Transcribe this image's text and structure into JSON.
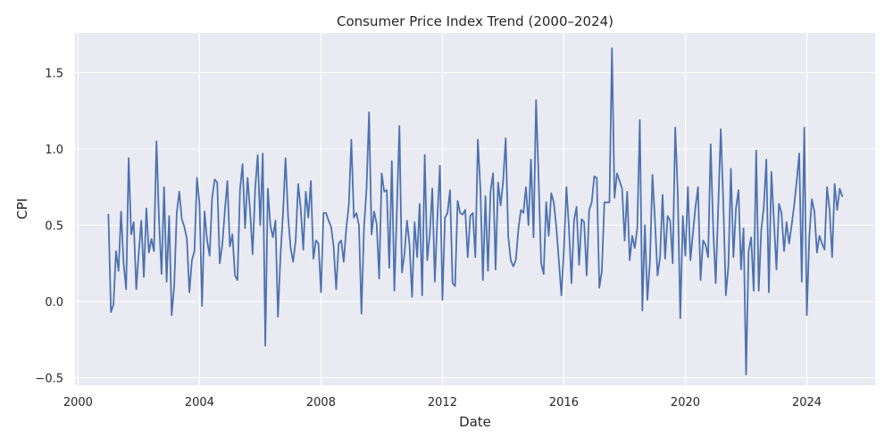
{
  "chart_data": {
    "type": "line",
    "title": "Consumer Price Index Trend (2000–2024)",
    "xlabel": "Date",
    "ylabel": "CPI",
    "x_ticks": [
      "2000",
      "2004",
      "2008",
      "2012",
      "2016",
      "2020",
      "2024"
    ],
    "y_ticks": [
      "−0.5",
      "0.0",
      "0.5",
      "1.0",
      "1.5"
    ],
    "xlim": [
      1999.9,
      2026.25
    ],
    "ylim": [
      -0.55,
      1.76
    ],
    "grid": true,
    "background": "#eaeaf2",
    "line_color": "#4c72b0",
    "series": [
      {
        "x_start": "2001-01",
        "frequency": "monthly",
        "values": [
          0.57,
          -0.07,
          -0.02,
          0.33,
          0.2,
          0.59,
          0.25,
          0.08,
          0.94,
          0.44,
          0.52,
          0.08,
          0.32,
          0.53,
          0.16,
          0.61,
          0.32,
          0.41,
          0.33,
          1.05,
          0.53,
          0.18,
          0.75,
          0.13,
          0.56,
          -0.09,
          0.1,
          0.58,
          0.72,
          0.54,
          0.49,
          0.41,
          0.06,
          0.27,
          0.33,
          0.81,
          0.64,
          -0.03,
          0.59,
          0.4,
          0.3,
          0.68,
          0.8,
          0.78,
          0.25,
          0.37,
          0.59,
          0.79,
          0.36,
          0.44,
          0.17,
          0.14,
          0.73,
          0.9,
          0.48,
          0.81,
          0.59,
          0.31,
          0.74,
          0.96,
          0.5,
          0.97,
          -0.29,
          0.74,
          0.5,
          0.42,
          0.53,
          -0.1,
          0.3,
          0.58,
          0.94,
          0.56,
          0.35,
          0.26,
          0.4,
          0.77,
          0.61,
          0.34,
          0.72,
          0.55,
          0.79,
          0.28,
          0.4,
          0.38,
          0.06,
          0.58,
          0.58,
          0.53,
          0.49,
          0.36,
          0.08,
          0.38,
          0.4,
          0.26,
          0.48,
          0.63,
          1.06,
          0.55,
          0.58,
          0.5,
          -0.08,
          0.48,
          0.74,
          1.24,
          0.44,
          0.59,
          0.51,
          0.15,
          0.84,
          0.72,
          0.73,
          0.22,
          0.92,
          0.07,
          0.6,
          1.15,
          0.19,
          0.31,
          0.53,
          0.37,
          0.03,
          0.52,
          0.29,
          0.64,
          0.04,
          0.96,
          0.27,
          0.44,
          0.74,
          0.13,
          0.55,
          0.89,
          0.01,
          0.55,
          0.58,
          0.73,
          0.12,
          0.1,
          0.66,
          0.58,
          0.57,
          0.6,
          0.29,
          0.56,
          0.58,
          0.29,
          1.06,
          0.74,
          0.14,
          0.69,
          0.2,
          0.72,
          0.84,
          0.21,
          0.78,
          0.63,
          0.79,
          1.07,
          0.43,
          0.27,
          0.23,
          0.27,
          0.47,
          0.6,
          0.58,
          0.75,
          0.5,
          0.93,
          0.42,
          1.32,
          0.81,
          0.25,
          0.18,
          0.65,
          0.43,
          0.71,
          0.65,
          0.49,
          0.27,
          0.04,
          0.34,
          0.75,
          0.48,
          0.12,
          0.53,
          0.62,
          0.24,
          0.54,
          0.52,
          0.17,
          0.6,
          0.65,
          0.82,
          0.81,
          0.09,
          0.2,
          0.65,
          0.65,
          0.65,
          1.66,
          0.68,
          0.84,
          0.79,
          0.74,
          0.4,
          0.72,
          0.27,
          0.43,
          0.35,
          0.48,
          1.19,
          -0.06,
          0.5,
          0.01,
          0.26,
          0.83,
          0.53,
          0.17,
          0.29,
          0.7,
          0.28,
          0.56,
          0.53,
          0.25,
          1.14,
          0.71,
          -0.11,
          0.56,
          0.3,
          0.75,
          0.27,
          0.45,
          0.62,
          0.75,
          0.14,
          0.4,
          0.37,
          0.29,
          1.03,
          0.48,
          0.12,
          0.62,
          1.13,
          0.65,
          0.04,
          0.23,
          0.87,
          0.29,
          0.61,
          0.73,
          0.21,
          0.48,
          -0.48,
          0.33,
          0.42,
          0.07,
          0.99,
          0.07,
          0.47,
          0.62,
          0.93,
          0.06,
          0.85,
          0.53,
          0.21,
          0.64,
          0.58,
          0.33,
          0.52,
          0.38,
          0.5,
          0.63,
          0.79,
          0.97,
          0.13,
          1.14,
          -0.09,
          0.43,
          0.67,
          0.59,
          0.32,
          0.43,
          0.38,
          0.34,
          0.75,
          0.6,
          0.29,
          0.77,
          0.6,
          0.74,
          0.69
        ]
      }
    ]
  }
}
